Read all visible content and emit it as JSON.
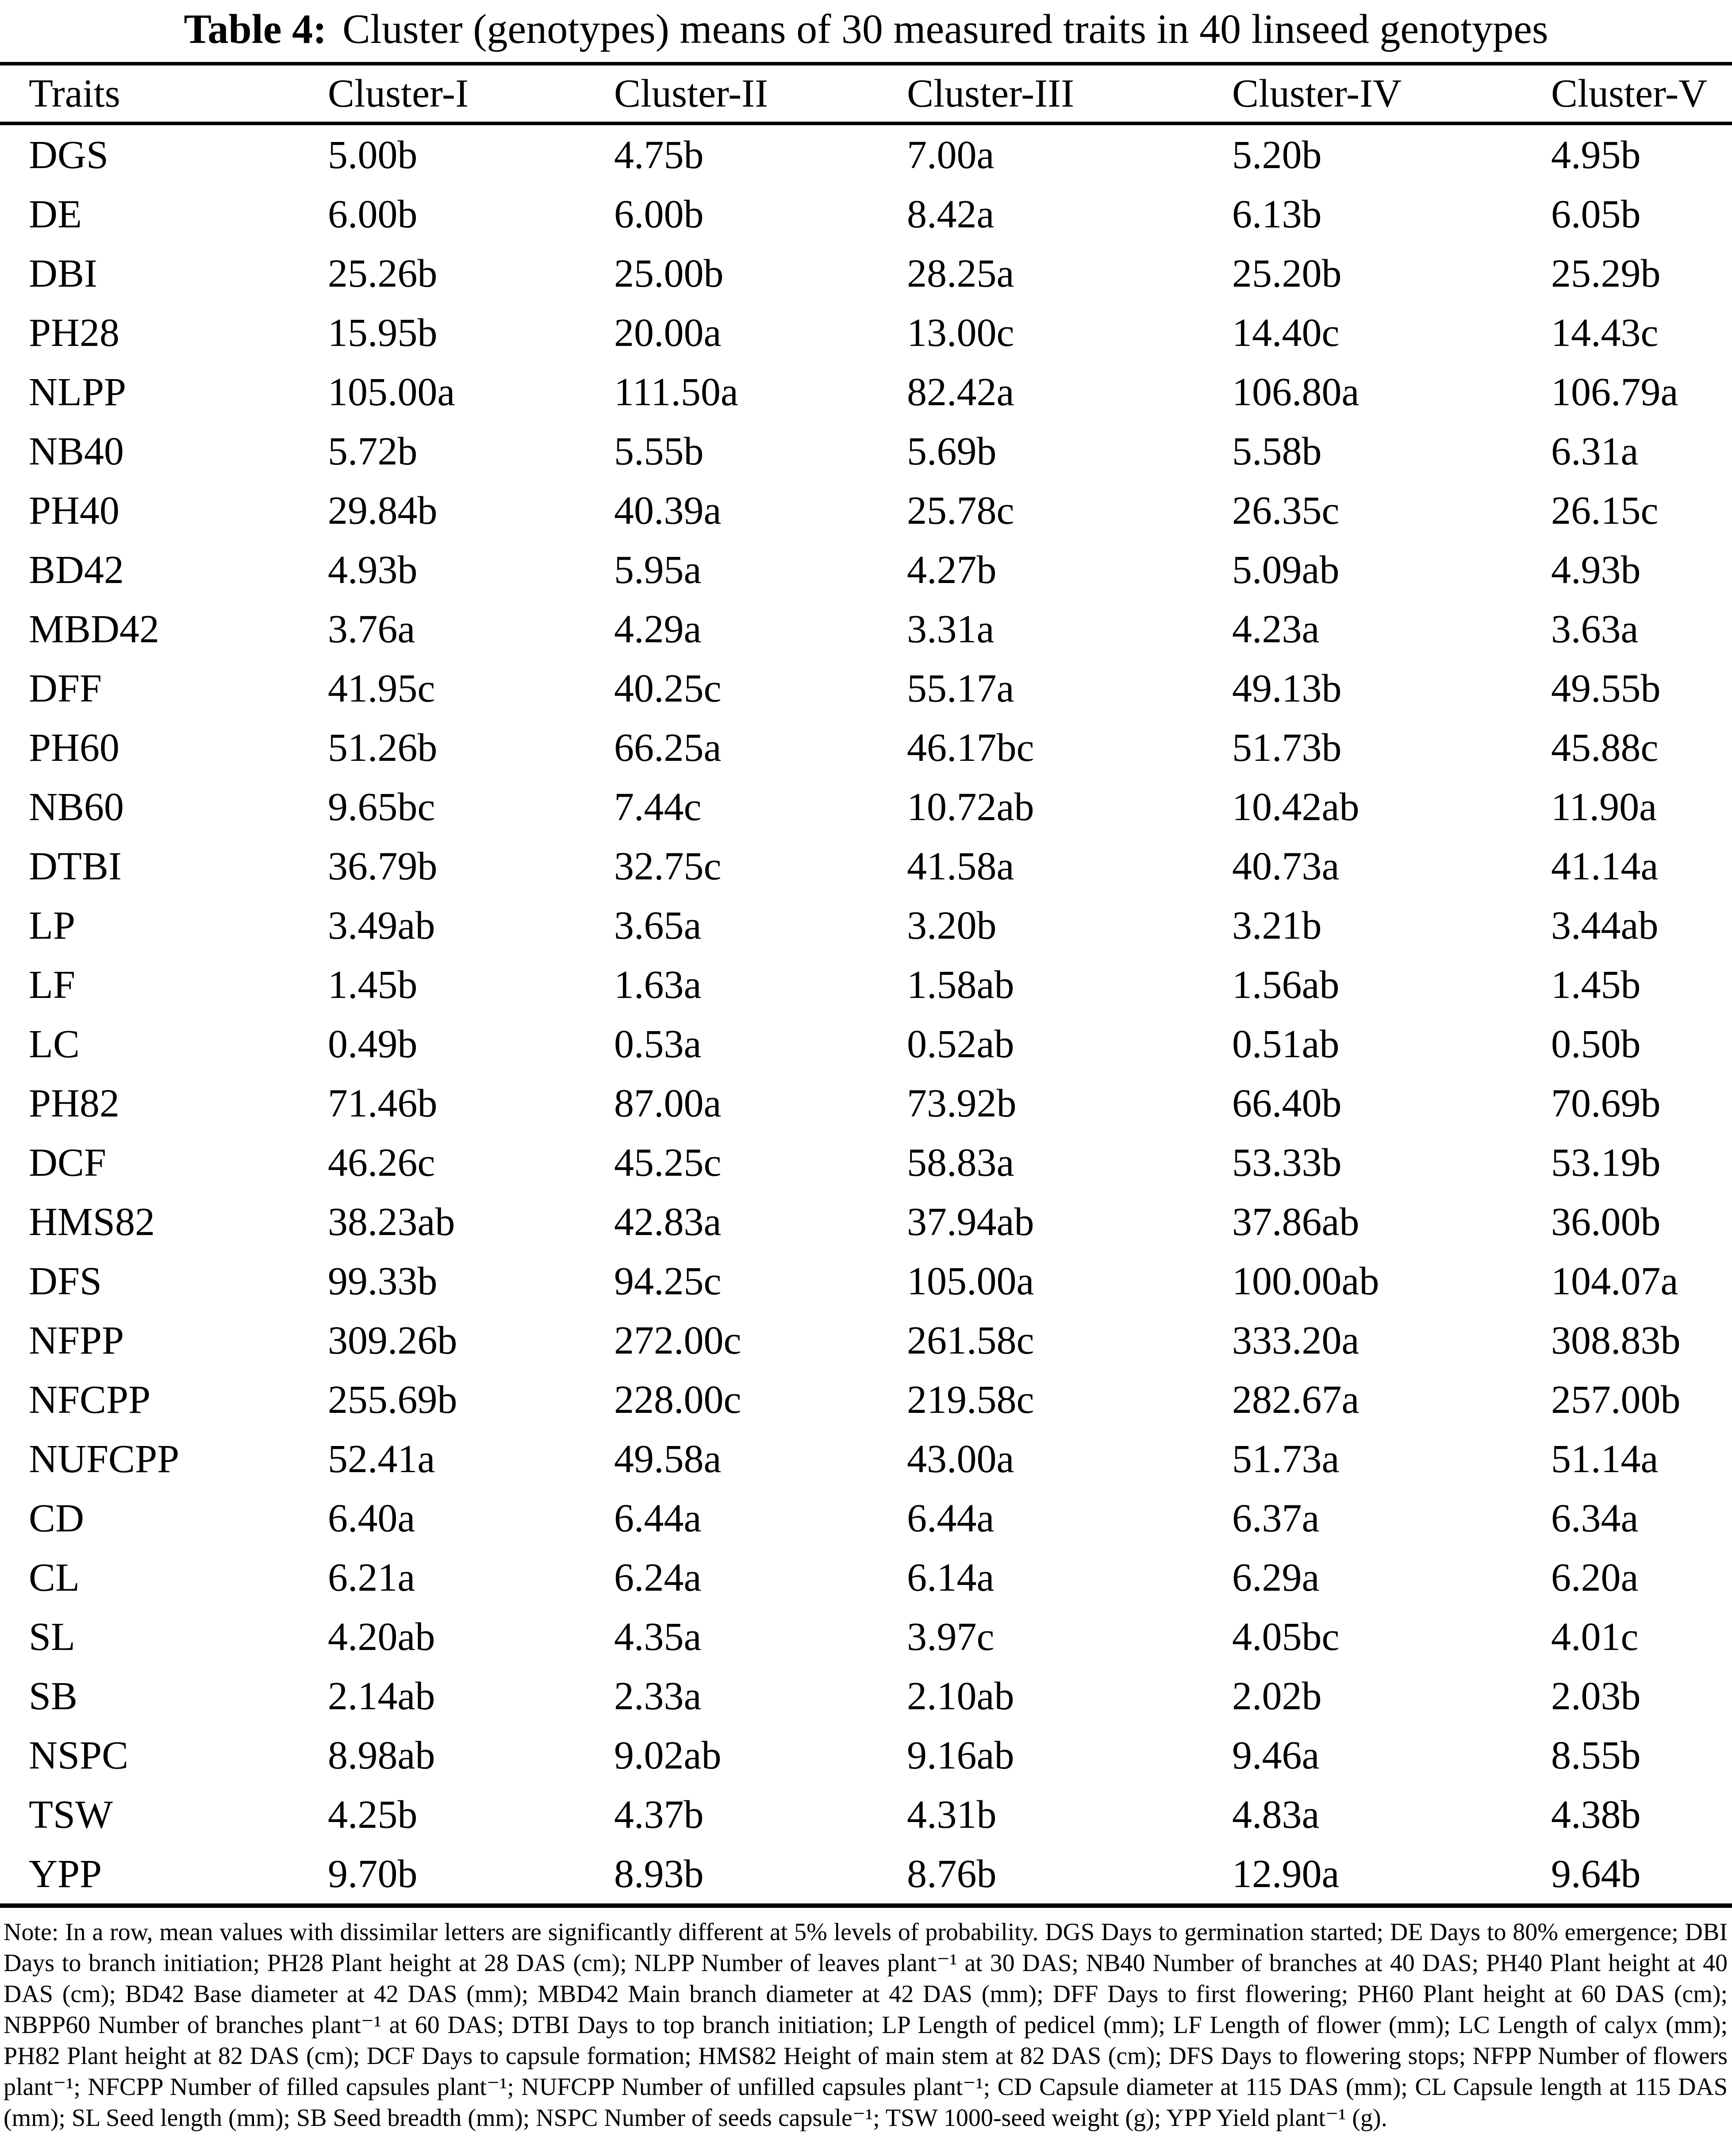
{
  "colors": {
    "background": "#ffffff",
    "text": "#000000",
    "rule": "#000000"
  },
  "title": {
    "prefix": "Table 4:",
    "text": "Cluster (genotypes) means of 30 measured traits in 40 linseed genotypes"
  },
  "table": {
    "columns": [
      "Traits",
      "Cluster-I",
      "Cluster-II",
      "Cluster-III",
      "Cluster-IV",
      "Cluster-V"
    ],
    "rows": [
      {
        "trait": "DGS",
        "values": [
          "5.00b",
          "4.75b",
          "7.00a",
          "5.20b",
          "4.95b"
        ]
      },
      {
        "trait": "DE",
        "values": [
          "6.00b",
          "6.00b",
          "8.42a",
          "6.13b",
          "6.05b"
        ]
      },
      {
        "trait": "DBI",
        "values": [
          "25.26b",
          "25.00b",
          "28.25a",
          "25.20b",
          "25.29b"
        ]
      },
      {
        "trait": "PH28",
        "values": [
          "15.95b",
          "20.00a",
          "13.00c",
          "14.40c",
          "14.43c"
        ]
      },
      {
        "trait": "NLPP",
        "values": [
          "105.00a",
          "111.50a",
          "82.42a",
          "106.80a",
          "106.79a"
        ]
      },
      {
        "trait": "NB40",
        "values": [
          "5.72b",
          "5.55b",
          "5.69b",
          "5.58b",
          "6.31a"
        ]
      },
      {
        "trait": "PH40",
        "values": [
          "29.84b",
          "40.39a",
          "25.78c",
          "26.35c",
          "26.15c"
        ]
      },
      {
        "trait": "BD42",
        "values": [
          "4.93b",
          "5.95a",
          "4.27b",
          "5.09ab",
          "4.93b"
        ]
      },
      {
        "trait": "MBD42",
        "values": [
          "3.76a",
          "4.29a",
          "3.31a",
          "4.23a",
          "3.63a"
        ]
      },
      {
        "trait": "DFF",
        "values": [
          "41.95c",
          "40.25c",
          "55.17a",
          "49.13b",
          "49.55b"
        ]
      },
      {
        "trait": "PH60",
        "values": [
          "51.26b",
          "66.25a",
          "46.17bc",
          "51.73b",
          "45.88c"
        ]
      },
      {
        "trait": "NB60",
        "values": [
          "9.65bc",
          "7.44c",
          "10.72ab",
          "10.42ab",
          "11.90a"
        ]
      },
      {
        "trait": "DTBI",
        "values": [
          "36.79b",
          "32.75c",
          "41.58a",
          "40.73a",
          "41.14a"
        ]
      },
      {
        "trait": "LP",
        "values": [
          "3.49ab",
          "3.65a",
          "3.20b",
          "3.21b",
          "3.44ab"
        ]
      },
      {
        "trait": "LF",
        "values": [
          "1.45b",
          "1.63a",
          "1.58ab",
          "1.56ab",
          "1.45b"
        ]
      },
      {
        "trait": "LC",
        "values": [
          "0.49b",
          "0.53a",
          "0.52ab",
          "0.51ab",
          "0.50b"
        ]
      },
      {
        "trait": "PH82",
        "values": [
          "71.46b",
          "87.00a",
          "73.92b",
          "66.40b",
          "70.69b"
        ]
      },
      {
        "trait": "DCF",
        "values": [
          "46.26c",
          "45.25c",
          "58.83a",
          "53.33b",
          "53.19b"
        ]
      },
      {
        "trait": "HMS82",
        "values": [
          "38.23ab",
          "42.83a",
          "37.94ab",
          "37.86ab",
          "36.00b"
        ]
      },
      {
        "trait": "DFS",
        "values": [
          "99.33b",
          "94.25c",
          "105.00a",
          "100.00ab",
          "104.07a"
        ]
      },
      {
        "trait": "NFPP",
        "values": [
          "309.26b",
          "272.00c",
          "261.58c",
          "333.20a",
          "308.83b"
        ]
      },
      {
        "trait": "NFCPP",
        "values": [
          "255.69b",
          "228.00c",
          "219.58c",
          "282.67a",
          "257.00b"
        ]
      },
      {
        "trait": "NUFCPP",
        "values": [
          "52.41a",
          "49.58a",
          "43.00a",
          "51.73a",
          "51.14a"
        ]
      },
      {
        "trait": "CD",
        "values": [
          "6.40a",
          "6.44a",
          "6.44a",
          "6.37a",
          "6.34a"
        ]
      },
      {
        "trait": "CL",
        "values": [
          "6.21a",
          "6.24a",
          "6.14a",
          "6.29a",
          "6.20a"
        ]
      },
      {
        "trait": "SL",
        "values": [
          "4.20ab",
          "4.35a",
          "3.97c",
          "4.05bc",
          "4.01c"
        ]
      },
      {
        "trait": "SB",
        "values": [
          "2.14ab",
          "2.33a",
          "2.10ab",
          "2.02b",
          "2.03b"
        ]
      },
      {
        "trait": "NSPC",
        "values": [
          "8.98ab",
          "9.02ab",
          "9.16ab",
          "9.46a",
          "8.55b"
        ]
      },
      {
        "trait": "TSW",
        "values": [
          "4.25b",
          "4.37b",
          "4.31b",
          "4.83a",
          "4.38b"
        ]
      },
      {
        "trait": "YPP",
        "values": [
          "9.70b",
          "8.93b",
          "8.76b",
          "12.90a",
          "9.64b"
        ]
      }
    ]
  },
  "note": "Note: In a row, mean values with dissimilar letters are significantly different at 5% levels of probability. DGS Days to germination started; DE Days to 80% emergence; DBI Days to branch initiation; PH28 Plant height at 28 DAS (cm); NLPP Number of leaves plant⁻¹ at 30 DAS; NB40 Number of branches at 40 DAS; PH40 Plant height at 40 DAS (cm); BD42 Base diameter at 42 DAS (mm); MBD42 Main branch diameter at 42 DAS (mm); DFF Days to first flowering; PH60 Plant height at 60 DAS (cm); NBPP60 Number of branches plant⁻¹ at 60 DAS; DTBI Days to top branch initiation; LP Length of pedicel (mm); LF Length of flower (mm); LC Length of calyx (mm); PH82 Plant height at 82 DAS (cm); DCF Days to capsule formation; HMS82 Height of main stem at 82 DAS (cm); DFS Days to flowering stops; NFPP Number of flowers plant⁻¹; NFCPP Number of filled capsules plant⁻¹; NUFCPP Number of unfilled capsules plant⁻¹; CD Capsule diameter at 115 DAS (mm); CL Capsule length at 115 DAS (mm); SL Seed length (mm); SB Seed breadth (mm); NSPC Number of seeds capsule⁻¹; TSW 1000-seed weight (g); YPP Yield plant⁻¹ (g)."
}
